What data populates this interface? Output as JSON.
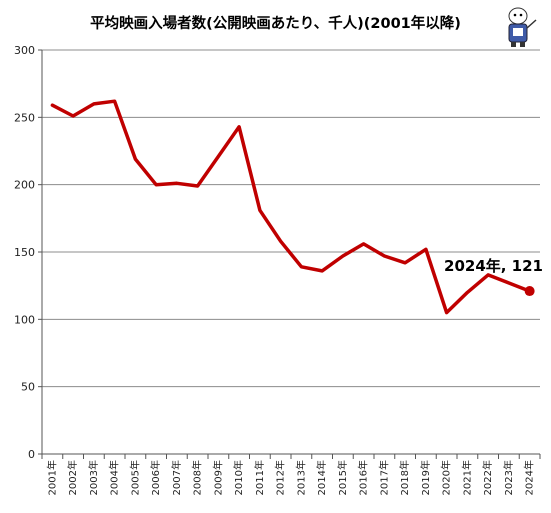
{
  "chart_data": {
    "type": "line",
    "title": "平均映画入場者数(公開映画あたり、千人)(2001年以降)",
    "categories": [
      "2001年",
      "2002年",
      "2003年",
      "2004年",
      "2005年",
      "2006年",
      "2007年",
      "2008年",
      "2009年",
      "2010年",
      "2011年",
      "2012年",
      "2013年",
      "2014年",
      "2015年",
      "2016年",
      "2017年",
      "2018年",
      "2019年",
      "2020年",
      "2021年",
      "2022年",
      "2023年",
      "2024年"
    ],
    "values": [
      259,
      251,
      260,
      262,
      219,
      200,
      201,
      199,
      221,
      243,
      181,
      158,
      139,
      136,
      147,
      156,
      147,
      142,
      152,
      105,
      120,
      133,
      127,
      121
    ],
    "ylim": [
      0,
      300
    ],
    "yticks": [
      0,
      50,
      100,
      150,
      200,
      250,
      300
    ],
    "grid": true,
    "line_color": "#c00000",
    "annotation": "2024年, 121"
  }
}
